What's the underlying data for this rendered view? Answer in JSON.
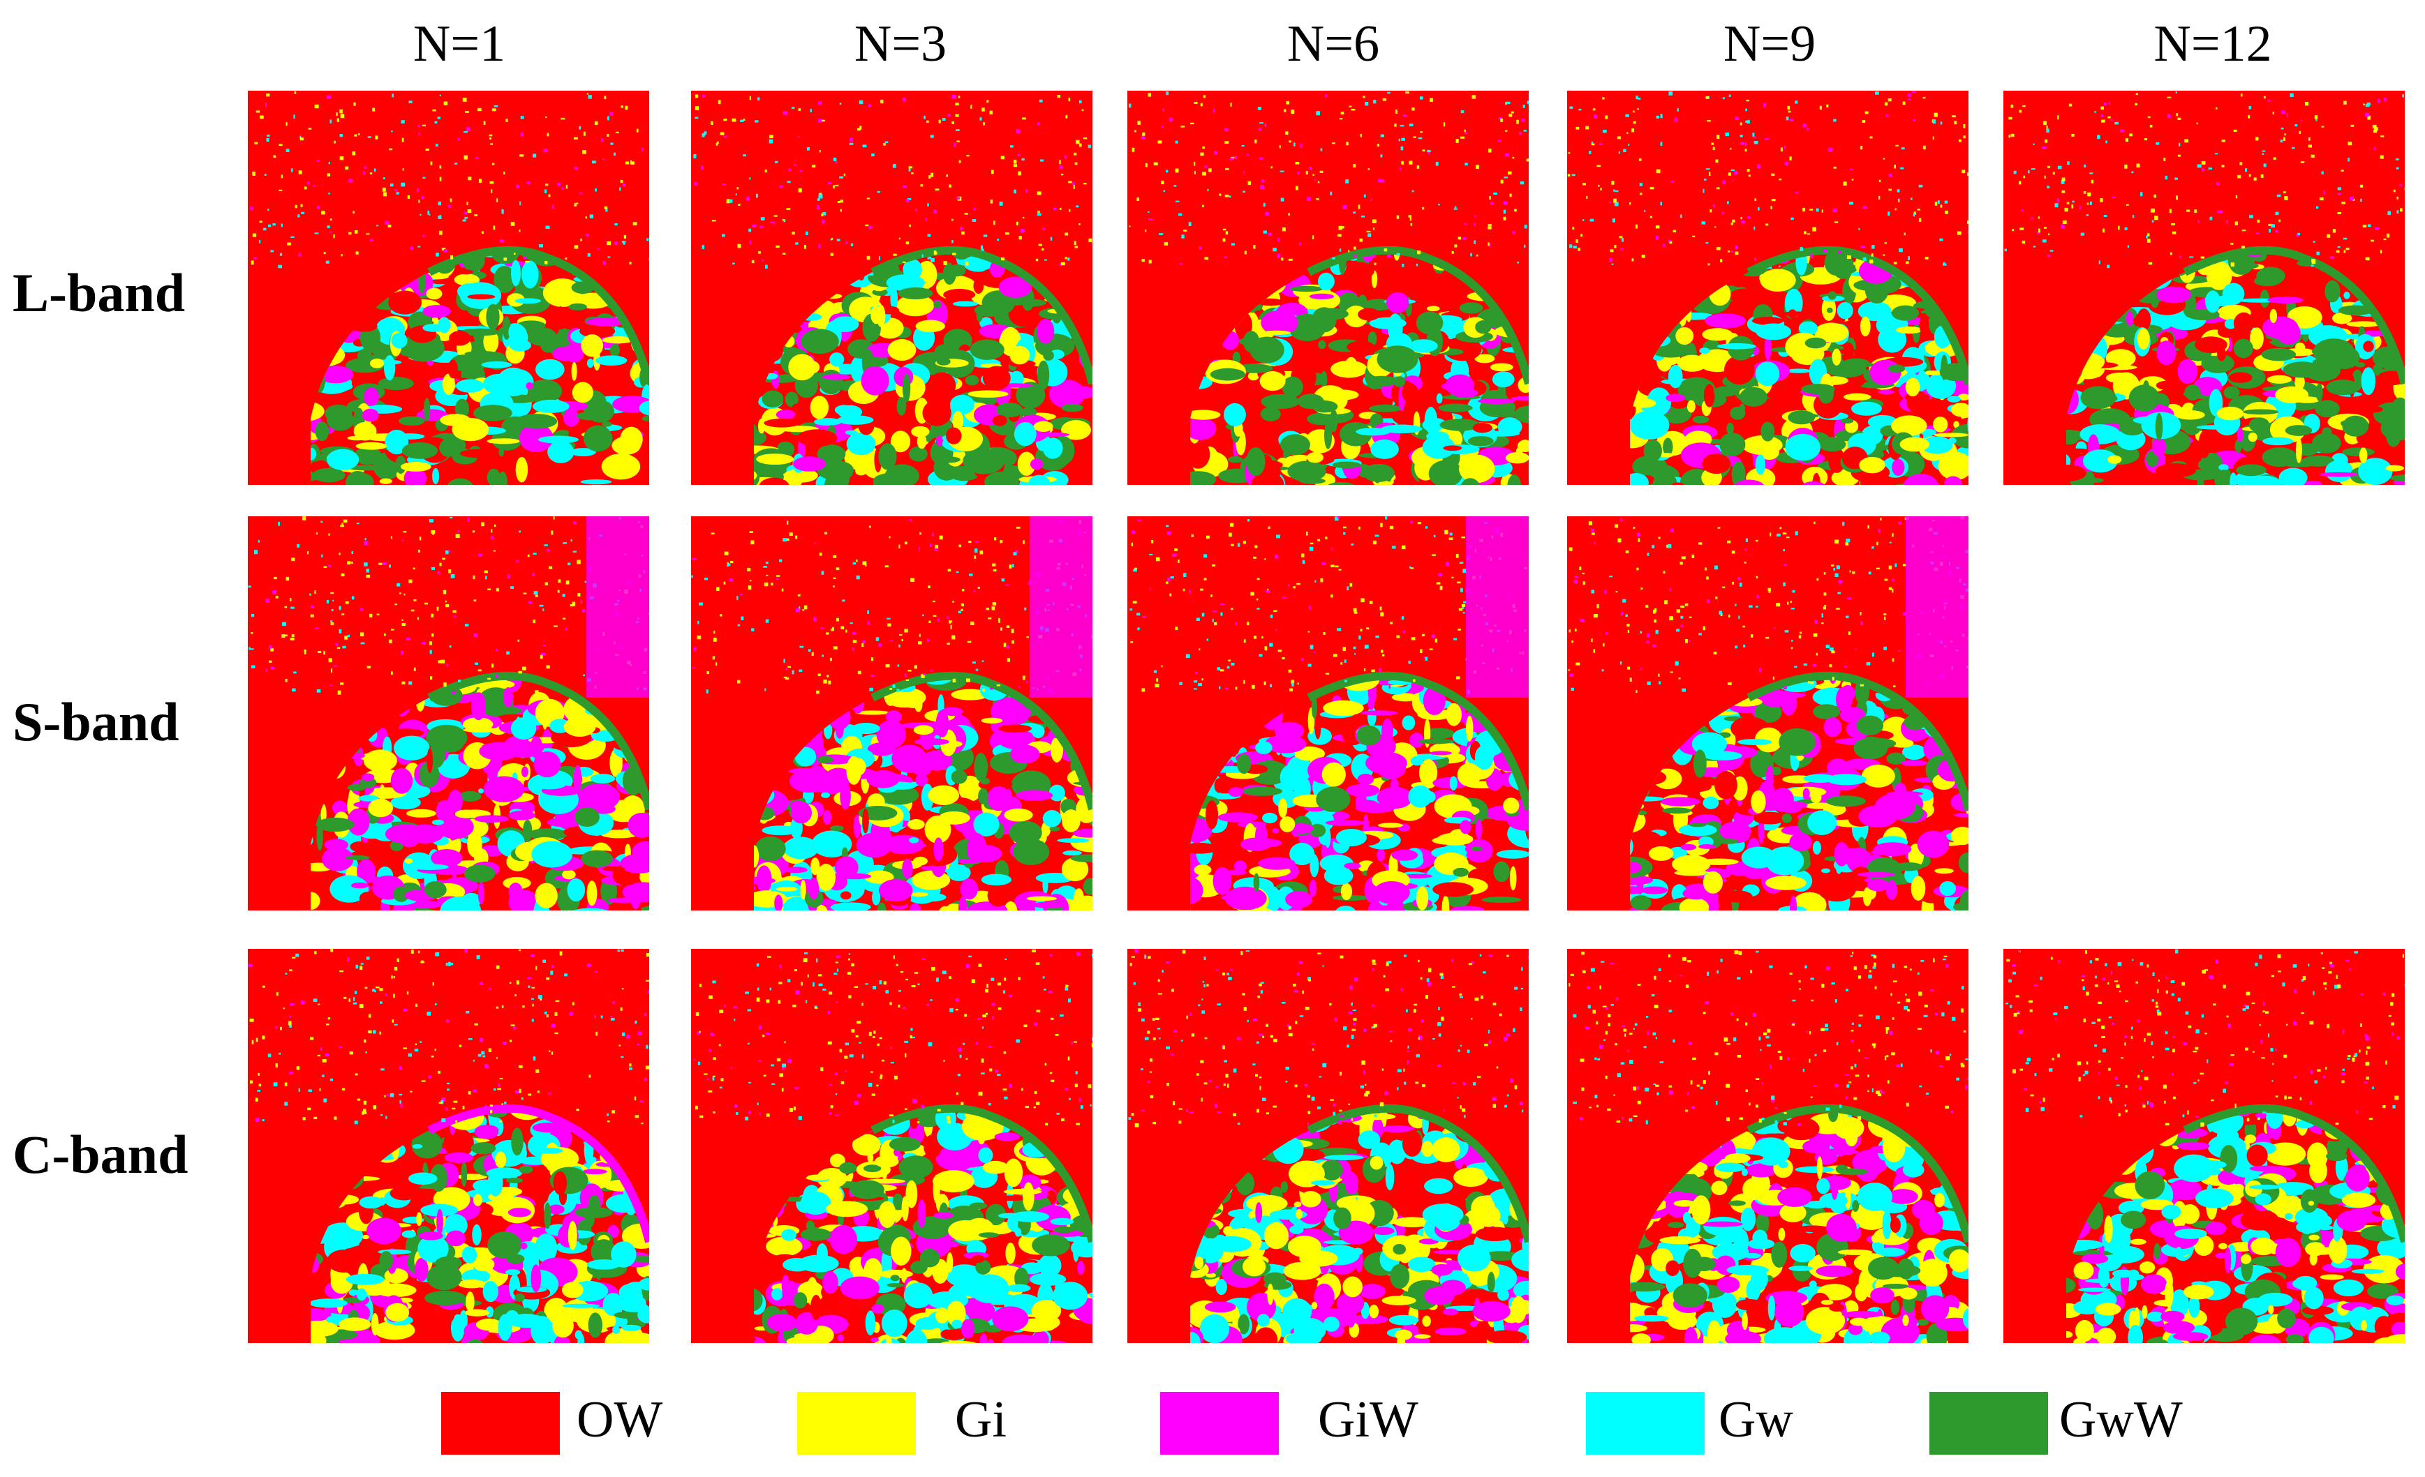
{
  "figure": {
    "columns": [
      "N=1",
      "N=3",
      "N=6",
      "N=9",
      "N=12"
    ],
    "rows": [
      "L-band",
      "S-band",
      "C-band"
    ],
    "panels_present": [
      [
        true,
        true,
        true,
        true,
        true
      ],
      [
        true,
        true,
        true,
        true,
        false
      ],
      [
        true,
        true,
        true,
        true,
        true
      ]
    ]
  },
  "legend": [
    {
      "code": "OW",
      "color": "#ff0000"
    },
    {
      "code": "Gi",
      "color": "#ffff00"
    },
    {
      "code": "GiW",
      "color": "#ff00ff"
    },
    {
      "code": "Gw",
      "color": "#00ffff"
    },
    {
      "code": "GwW",
      "color": "#2e9a2e"
    }
  ]
}
